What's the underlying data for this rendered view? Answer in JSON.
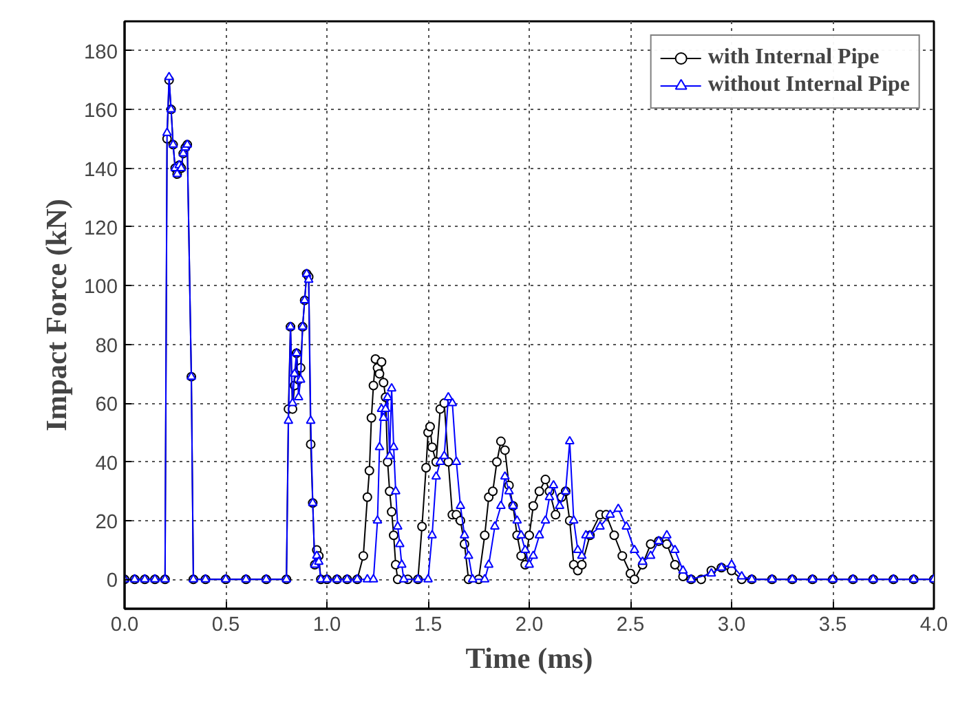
{
  "chart_data": {
    "type": "line",
    "xlabel": "Time (ms)",
    "ylabel": "Impact Force (kN)",
    "xlim": [
      0,
      4
    ],
    "ylim": [
      -10,
      190
    ],
    "xticks": [
      {
        "value": 0,
        "label": "0.0"
      },
      {
        "value": 0.5,
        "label": "0.5"
      },
      {
        "value": 1,
        "label": "1.0"
      },
      {
        "value": 1.5,
        "label": "1.5"
      },
      {
        "value": 2,
        "label": "2.0"
      },
      {
        "value": 2.5,
        "label": "2.5"
      },
      {
        "value": 3,
        "label": "3.0"
      },
      {
        "value": 3.5,
        "label": "3.5"
      },
      {
        "value": 4,
        "label": "4.0"
      }
    ],
    "yticks": [
      0,
      20,
      40,
      60,
      80,
      100,
      120,
      140,
      160,
      180
    ],
    "grid": true,
    "legend": "top right",
    "line_style": "solid",
    "series": [
      {
        "name": "with Internal Pipe",
        "color": "#000000",
        "marker": "circle",
        "x": [
          0,
          0.05,
          0.1,
          0.15,
          0.2,
          0.21,
          0.22,
          0.23,
          0.24,
          0.25,
          0.26,
          0.27,
          0.28,
          0.29,
          0.3,
          0.31,
          0.33,
          0.34,
          0.4,
          0.5,
          0.6,
          0.7,
          0.8,
          0.81,
          0.82,
          0.83,
          0.84,
          0.85,
          0.86,
          0.87,
          0.88,
          0.89,
          0.9,
          0.91,
          0.92,
          0.93,
          0.94,
          0.95,
          0.96,
          0.97,
          1.0,
          1.05,
          1.1,
          1.15,
          1.18,
          1.2,
          1.21,
          1.22,
          1.23,
          1.24,
          1.25,
          1.26,
          1.27,
          1.28,
          1.29,
          1.3,
          1.31,
          1.32,
          1.33,
          1.34,
          1.35,
          1.4,
          1.45,
          1.47,
          1.49,
          1.5,
          1.51,
          1.52,
          1.54,
          1.56,
          1.58,
          1.6,
          1.62,
          1.64,
          1.66,
          1.68,
          1.7,
          1.75,
          1.78,
          1.8,
          1.82,
          1.84,
          1.86,
          1.88,
          1.9,
          1.92,
          1.94,
          1.96,
          1.98,
          2.0,
          2.02,
          2.05,
          2.08,
          2.1,
          2.13,
          2.16,
          2.18,
          2.2,
          2.22,
          2.24,
          2.26,
          2.3,
          2.35,
          2.38,
          2.42,
          2.46,
          2.5,
          2.52,
          2.56,
          2.6,
          2.64,
          2.68,
          2.72,
          2.76,
          2.8,
          2.85,
          2.9,
          2.95,
          3.0,
          3.05,
          3.1,
          3.2,
          3.3,
          3.4,
          3.5,
          3.6,
          3.7,
          3.8,
          3.9,
          4.0
        ],
        "values": [
          0,
          0,
          0,
          0,
          0,
          150,
          170,
          160,
          148,
          140,
          138,
          141,
          140,
          145,
          147,
          148,
          69,
          0,
          0,
          0,
          0,
          0,
          0,
          58,
          86,
          58,
          66,
          77,
          68,
          72,
          86,
          95,
          104,
          103,
          46,
          26,
          5,
          10,
          8,
          0,
          0,
          0,
          0,
          0,
          8,
          28,
          37,
          55,
          66,
          75,
          72,
          70,
          74,
          67,
          62,
          40,
          30,
          23,
          15,
          5,
          0,
          0,
          0,
          18,
          38,
          50,
          52,
          45,
          40,
          58,
          60,
          40,
          22,
          22,
          20,
          12,
          0,
          0,
          15,
          28,
          30,
          40,
          47,
          44,
          32,
          25,
          15,
          8,
          5,
          15,
          25,
          30,
          34,
          30,
          22,
          28,
          30,
          20,
          5,
          3,
          5,
          15,
          22,
          22,
          15,
          8,
          2,
          0,
          5,
          12,
          13,
          12,
          5,
          1,
          0,
          0,
          3,
          4,
          3,
          0,
          0,
          0,
          0,
          0,
          0,
          0,
          0,
          0,
          0,
          0
        ]
      },
      {
        "name": "without Internal Pipe",
        "color": "#0000ff",
        "marker": "triangle",
        "x": [
          0,
          0.05,
          0.1,
          0.15,
          0.2,
          0.21,
          0.22,
          0.23,
          0.24,
          0.25,
          0.26,
          0.27,
          0.28,
          0.29,
          0.3,
          0.31,
          0.33,
          0.34,
          0.4,
          0.5,
          0.6,
          0.7,
          0.8,
          0.81,
          0.82,
          0.83,
          0.84,
          0.85,
          0.86,
          0.87,
          0.88,
          0.89,
          0.9,
          0.91,
          0.92,
          0.93,
          0.94,
          0.95,
          0.96,
          0.97,
          1.0,
          1.05,
          1.1,
          1.15,
          1.2,
          1.23,
          1.25,
          1.26,
          1.27,
          1.28,
          1.29,
          1.3,
          1.31,
          1.32,
          1.33,
          1.34,
          1.35,
          1.36,
          1.37,
          1.38,
          1.45,
          1.5,
          1.52,
          1.54,
          1.56,
          1.58,
          1.6,
          1.62,
          1.64,
          1.66,
          1.68,
          1.7,
          1.72,
          1.78,
          1.8,
          1.83,
          1.86,
          1.88,
          1.9,
          1.92,
          1.94,
          1.96,
          1.98,
          2.0,
          2.02,
          2.05,
          2.08,
          2.1,
          2.12,
          2.15,
          2.18,
          2.2,
          2.22,
          2.24,
          2.26,
          2.28,
          2.3,
          2.35,
          2.4,
          2.44,
          2.48,
          2.52,
          2.56,
          2.6,
          2.64,
          2.68,
          2.72,
          2.76,
          2.8,
          2.9,
          2.95,
          3.0,
          3.05,
          3.1,
          3.2,
          3.3,
          3.4,
          3.5,
          3.6,
          3.7,
          3.8,
          3.9,
          4.0
        ],
        "values": [
          0,
          0,
          0,
          0,
          0,
          152,
          171,
          160,
          148,
          140,
          138,
          141,
          140,
          145,
          147,
          148,
          69,
          0,
          0,
          0,
          0,
          0,
          0,
          54,
          86,
          60,
          70,
          77,
          62,
          68,
          86,
          95,
          104,
          102,
          54,
          26,
          5,
          8,
          6,
          0,
          0,
          0,
          0,
          0,
          0,
          0,
          20,
          45,
          58,
          55,
          58,
          62,
          42,
          65,
          45,
          30,
          18,
          12,
          5,
          0,
          0,
          0,
          15,
          35,
          40,
          42,
          62,
          60,
          40,
          25,
          15,
          8,
          0,
          0,
          5,
          18,
          25,
          35,
          30,
          25,
          20,
          15,
          10,
          5,
          8,
          15,
          20,
          28,
          32,
          25,
          30,
          47,
          20,
          10,
          8,
          15,
          15,
          18,
          22,
          24,
          18,
          10,
          6,
          8,
          13,
          15,
          10,
          3,
          0,
          2,
          4,
          5,
          1,
          0,
          0,
          0,
          0,
          0,
          0,
          0,
          0,
          0,
          0
        ]
      }
    ]
  }
}
